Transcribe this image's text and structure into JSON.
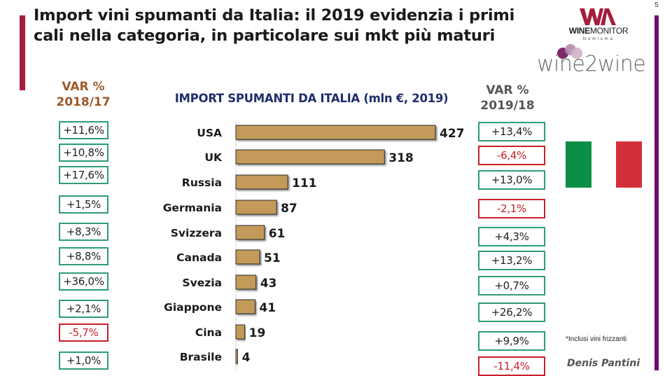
{
  "slide": {
    "title": "Import vini spumanti da Italia: il 2019 evidenzia i primi cali nella categoria, in particolare sui mkt più maturi",
    "page_number": "5",
    "footnote": "*Inclusi vini frizzanti",
    "author": "Denis Pantini",
    "colors": {
      "title_accent": "#a51d3a",
      "right_rule": "#6a0f6a",
      "bar_fill": "#c49a5a",
      "positive_border": "#2e9b7c",
      "negative_border": "#c8202a",
      "chart_title": "#1f2f6b",
      "left_header": "#9c5a2a"
    }
  },
  "logos": {
    "winemonitor_bold": "WINE",
    "winemonitor_regular": "MONITOR",
    "winemonitor_sub": "Nomisma",
    "wine2wine": "wine2wine"
  },
  "left_column": {
    "header_line1": "VAR %",
    "header_line2": "2018/17",
    "values": [
      {
        "text": "+11,6%",
        "sign": "pos"
      },
      {
        "text": "+10,8%",
        "sign": "pos"
      },
      {
        "text": "+17,6%",
        "sign": "pos"
      },
      {
        "text": "+1,5%",
        "sign": "pos"
      },
      {
        "text": "+8,3%",
        "sign": "pos"
      },
      {
        "text": "+8,8%",
        "sign": "pos"
      },
      {
        "text": "+36,0%",
        "sign": "pos"
      },
      {
        "text": "+2,1%",
        "sign": "pos"
      },
      {
        "text": "-5,7%",
        "sign": "neg"
      },
      {
        "text": "+1,0%",
        "sign": "pos"
      }
    ]
  },
  "right_column": {
    "header_line1": "VAR %",
    "header_line2": "2019/18",
    "values": [
      {
        "text": "+13,4%",
        "sign": "pos"
      },
      {
        "text": "-6,4%",
        "sign": "neg"
      },
      {
        "text": "+13,0%",
        "sign": "pos"
      },
      {
        "text": "-2,1%",
        "sign": "neg"
      },
      {
        "text": "+4,3%",
        "sign": "pos"
      },
      {
        "text": "+13,2%",
        "sign": "pos"
      },
      {
        "text": "+0,7%",
        "sign": "pos"
      },
      {
        "text": "+26,2%",
        "sign": "pos"
      },
      {
        "text": "+9,9%",
        "sign": "pos"
      },
      {
        "text": "-11,4%",
        "sign": "neg"
      }
    ]
  },
  "chart_data": {
    "type": "bar",
    "orientation": "horizontal",
    "title": "IMPORT SPUMANTI DA ITALIA (mln €, 2019)",
    "xlabel": "",
    "ylabel": "",
    "categories": [
      "USA",
      "UK",
      "Russia",
      "Germania",
      "Svizzera",
      "Canada",
      "Svezia",
      "Giappone",
      "Cina",
      "Brasile"
    ],
    "values": [
      427,
      318,
      111,
      87,
      61,
      51,
      43,
      41,
      19,
      4
    ],
    "xlim": [
      0,
      427
    ],
    "grid": false,
    "legend": "none",
    "data_labels": true
  }
}
